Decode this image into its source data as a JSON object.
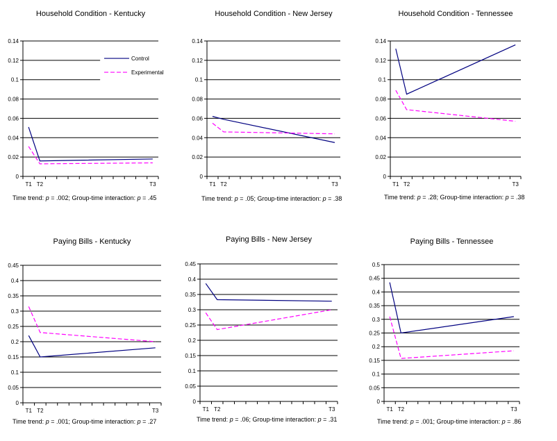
{
  "colors": {
    "control": "#000080",
    "experimental": "#ff00ff",
    "grid": "#000000"
  },
  "caption_labels": {
    "time": "Time trend:",
    "p": "p",
    "eq": "=",
    "interaction": "; Group-time interaction:"
  },
  "chart_data": [
    {
      "type": "line",
      "title": "Household Condition - Kentucky",
      "categories": [
        "T1",
        "T2",
        "T3"
      ],
      "x": [
        0,
        1,
        11
      ],
      "xlim": [
        -0.5,
        11.5
      ],
      "ylim": [
        0,
        0.14
      ],
      "yticks": [
        "0",
        "0.02",
        "0.04",
        "0.06",
        "0.08",
        "0.1",
        "0.12",
        "0.14"
      ],
      "grid": true,
      "legend": "top-right",
      "series": [
        {
          "name": "Control",
          "values": [
            0.051,
            0.016,
            0.018
          ]
        },
        {
          "name": "Experimental",
          "values": [
            0.031,
            0.013,
            0.014
          ]
        }
      ],
      "time_p": ".002",
      "interaction_p": ".45"
    },
    {
      "type": "line",
      "title": "Household Condition - New Jersey",
      "categories": [
        "T1",
        "T2",
        "T3"
      ],
      "x": [
        0,
        1,
        11
      ],
      "xlim": [
        -0.5,
        11.5
      ],
      "ylim": [
        0,
        0.14
      ],
      "yticks": [
        "0",
        "0.02",
        "0.04",
        "0.06",
        "0.08",
        "0.1",
        "0.12",
        "0.14"
      ],
      "grid": true,
      "series": [
        {
          "values": [
            0.062,
            0.059,
            0.035
          ]
        },
        {
          "values": [
            0.055,
            0.046,
            0.044
          ]
        }
      ],
      "time_p": ".05",
      "interaction_p": ".38"
    },
    {
      "type": "line",
      "title": "Household Condition - Tennessee",
      "categories": [
        "T1",
        "T2",
        "T3"
      ],
      "x": [
        0,
        1,
        11
      ],
      "xlim": [
        -0.5,
        11.5
      ],
      "ylim": [
        0,
        0.14
      ],
      "yticks": [
        "0",
        "0.02",
        "0.04",
        "0.06",
        "0.08",
        "0.1",
        "0.12",
        "0.14"
      ],
      "grid": true,
      "series": [
        {
          "values": [
            0.132,
            0.085,
            0.136
          ]
        },
        {
          "values": [
            0.089,
            0.069,
            0.057
          ]
        }
      ],
      "time_p": ".28",
      "interaction_p": ".38"
    },
    {
      "type": "line",
      "title": "Paying Bills - Kentucky",
      "categories": [
        "T1",
        "T2",
        "T3"
      ],
      "x": [
        0,
        1,
        11
      ],
      "xlim": [
        -0.5,
        11.5
      ],
      "ylim": [
        0,
        0.45
      ],
      "yticks": [
        "0",
        "0.05",
        "0.1",
        "0.15",
        "0.2",
        "0.25",
        "0.3",
        "0.35",
        "0.4",
        "0.45"
      ],
      "grid": true,
      "series": [
        {
          "values": [
            0.22,
            0.15,
            0.18
          ]
        },
        {
          "values": [
            0.315,
            0.23,
            0.2
          ]
        }
      ],
      "time_p": ".001",
      "interaction_p": ".27"
    },
    {
      "type": "line",
      "title": "Paying Bills - New Jersey",
      "categories": [
        "T1",
        "T2",
        "T3"
      ],
      "x": [
        0,
        1,
        11
      ],
      "xlim": [
        -0.5,
        11.5
      ],
      "ylim": [
        0,
        0.45
      ],
      "yticks": [
        "0",
        "0.05",
        "0.1",
        "0.15",
        "0.2",
        "0.25",
        "0.3",
        "0.35",
        "0.4",
        "0.45"
      ],
      "grid": true,
      "series": [
        {
          "values": [
            0.386,
            0.333,
            0.328
          ]
        },
        {
          "values": [
            0.29,
            0.235,
            0.3
          ]
        }
      ],
      "time_p": ".06",
      "interaction_p": ".31"
    },
    {
      "type": "line",
      "title": "Paying Bills - Tennessee",
      "categories": [
        "T1",
        "T2",
        "T3"
      ],
      "x": [
        0,
        1,
        11
      ],
      "xlim": [
        -0.5,
        11.5
      ],
      "ylim": [
        0,
        0.5
      ],
      "yticks": [
        "0",
        "0.05",
        "0.1",
        "0.15",
        "0.2",
        "0.25",
        "0.3",
        "0.35",
        "0.4",
        "0.45",
        "0.5"
      ],
      "grid": true,
      "series": [
        {
          "values": [
            0.435,
            0.25,
            0.31
          ]
        },
        {
          "values": [
            0.31,
            0.157,
            0.185
          ]
        }
      ],
      "time_p": ".001",
      "interaction_p": ".86"
    }
  ]
}
